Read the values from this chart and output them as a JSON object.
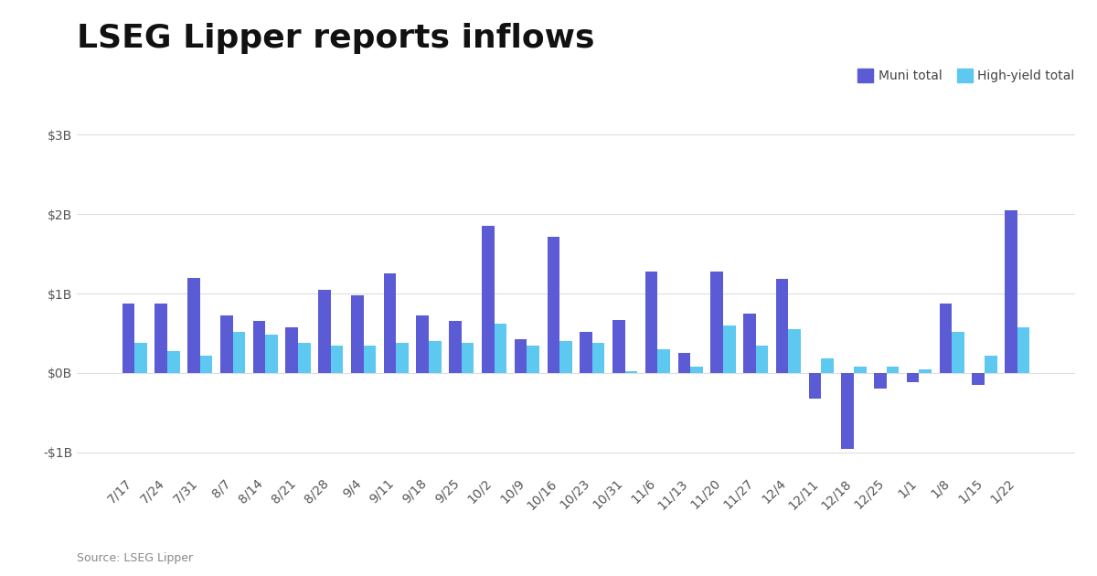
{
  "title": "LSEG Lipper reports inflows",
  "source": "Source: LSEG Lipper",
  "categories": [
    "7/17",
    "7/24",
    "7/31",
    "8/7",
    "8/14",
    "8/21",
    "8/28",
    "9/4",
    "9/11",
    "9/18",
    "9/25",
    "10/2",
    "10/9",
    "10/16",
    "10/23",
    "10/31",
    "11/6",
    "11/13",
    "11/20",
    "11/27",
    "12/4",
    "12/11",
    "12/18",
    "12/25",
    "1/1",
    "1/8",
    "1/15",
    "1/22"
  ],
  "muni_total": [
    0.88,
    0.88,
    1.2,
    0.72,
    0.65,
    0.58,
    1.05,
    0.98,
    1.25,
    0.72,
    0.65,
    1.85,
    0.42,
    1.72,
    0.52,
    0.67,
    1.28,
    0.25,
    1.28,
    0.75,
    1.18,
    -0.32,
    -0.95,
    -0.2,
    -0.12,
    0.88,
    -0.15,
    2.05
  ],
  "hy_total": [
    0.38,
    0.28,
    0.22,
    0.52,
    0.48,
    0.38,
    0.35,
    0.35,
    0.38,
    0.4,
    0.38,
    0.62,
    0.35,
    0.4,
    0.38,
    0.02,
    0.3,
    0.08,
    0.6,
    0.35,
    0.55,
    0.18,
    0.08,
    0.08,
    0.05,
    0.52,
    0.22,
    0.58
  ],
  "muni_color": "#5B5BD6",
  "hy_color": "#5DC8F0",
  "background_color": "#ffffff",
  "grid_color": "#dddddd",
  "ylim": [
    -1.25,
    3.1
  ],
  "yticks": [
    -1.0,
    0.0,
    1.0,
    2.0,
    3.0
  ],
  "ytick_labels": [
    "-$1B",
    "$0B",
    "$1B",
    "$2B",
    "$3B"
  ],
  "title_fontsize": 26,
  "axis_fontsize": 10,
  "legend_labels": [
    "Muni total",
    "High-yield total"
  ],
  "bar_width": 0.38
}
